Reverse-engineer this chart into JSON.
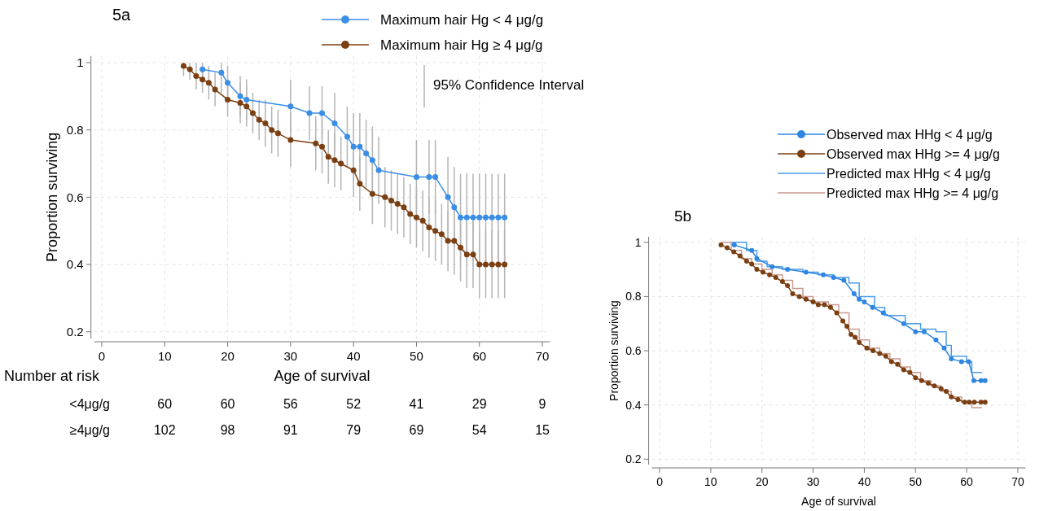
{
  "chart_data": [
    {
      "type": "line",
      "title": "5a",
      "xlabel": "Age of survival",
      "ylabel": "Proportion surviving",
      "xlim": [
        -1.2,
        71.2
      ],
      "xticks": [
        0,
        10,
        20,
        30,
        40,
        50,
        60,
        70
      ],
      "ylim": [
        0.18,
        1.02
      ],
      "yticks": [
        0.2,
        0.4,
        0.6,
        0.8,
        1
      ],
      "grid": true,
      "legend": "top",
      "marker": "circle",
      "series": [
        {
          "name": "Maximum hair Hg < 4 μg/g",
          "color": "#3a8ee6",
          "x": [
            16,
            19,
            20,
            22,
            23,
            30,
            33,
            35,
            37,
            39,
            40,
            41,
            42,
            43,
            44,
            50,
            52,
            53,
            55,
            56,
            57,
            58,
            59,
            60,
            61,
            62,
            63,
            64
          ],
          "values": [
            0.98,
            0.97,
            0.94,
            0.9,
            0.89,
            0.87,
            0.85,
            0.85,
            0.82,
            0.78,
            0.75,
            0.75,
            0.73,
            0.71,
            0.68,
            0.66,
            0.66,
            0.66,
            0.6,
            0.57,
            0.54,
            0.54,
            0.54,
            0.54,
            0.54,
            0.54,
            0.54,
            0.54
          ],
          "errors": [
            [
              0.93,
              1.0
            ],
            [
              0.91,
              1.0
            ],
            0.05,
            0.06,
            0.06,
            0.08,
            0.08,
            0.08,
            0.09,
            0.09,
            0.1,
            0.1,
            0.1,
            0.1,
            0.1,
            0.11,
            0.11,
            0.11,
            0.12,
            0.12,
            0.13,
            0.13,
            0.13,
            0.13,
            0.13,
            0.13,
            0.13,
            0.13
          ]
        },
        {
          "name": "Maximum hair Hg ≥ 4 μg/g",
          "color": "#7b3f12",
          "x": [
            13,
            14,
            15,
            16,
            17,
            18,
            20,
            22,
            23,
            24,
            25,
            26,
            27,
            28,
            30,
            34,
            35,
            36,
            37,
            38,
            40,
            41,
            43,
            45,
            46,
            47,
            48,
            49,
            50,
            51,
            52,
            53,
            54,
            55,
            56,
            57,
            58,
            59,
            60,
            61,
            62,
            63,
            64
          ],
          "values": [
            0.99,
            0.98,
            0.96,
            0.95,
            0.94,
            0.92,
            0.89,
            0.88,
            0.87,
            0.85,
            0.83,
            0.82,
            0.8,
            0.79,
            0.77,
            0.76,
            0.75,
            0.72,
            0.71,
            0.7,
            0.68,
            0.64,
            0.61,
            0.6,
            0.59,
            0.58,
            0.57,
            0.55,
            0.54,
            0.53,
            0.51,
            0.5,
            0.49,
            0.47,
            0.47,
            0.45,
            0.43,
            0.43,
            0.4,
            0.4,
            0.4,
            0.4,
            0.4
          ],
          "errors": [
            [
              0.96,
              1.0
            ],
            [
              0.95,
              1.0
            ],
            0.04,
            0.04,
            0.05,
            0.05,
            0.05,
            0.06,
            0.06,
            0.06,
            0.06,
            0.07,
            0.07,
            0.07,
            0.08,
            0.08,
            0.08,
            0.08,
            0.08,
            0.08,
            0.08,
            0.08,
            0.09,
            0.09,
            0.09,
            0.09,
            0.09,
            0.09,
            0.09,
            0.09,
            0.09,
            0.09,
            0.09,
            0.09,
            0.1,
            0.1,
            0.1,
            0.1,
            0.1,
            0.1,
            0.1,
            0.1,
            0.1
          ]
        }
      ],
      "annotations": [
        "95% Confidence Interval",
        "Number at risk",
        "<4μg/g",
        "60",
        "60",
        "56",
        "52",
        "41",
        "29",
        "9",
        "≥4μg/g",
        "102",
        "98",
        "91",
        "79",
        "69",
        "54",
        "15"
      ]
    },
    {
      "type": "line",
      "title": "5b",
      "xlabel": "Age of survival",
      "ylabel": "Proportion surviving",
      "xlim": [
        -1.5,
        71.5
      ],
      "xticks": [
        0,
        10,
        20,
        30,
        40,
        50,
        60,
        70
      ],
      "ylim": [
        0.18,
        1.02
      ],
      "yticks": [
        0.2,
        0.4,
        0.6,
        0.8,
        1
      ],
      "grid": true,
      "legend": "top right",
      "series": [
        {
          "name": "Observed max HHg < 4 μg/g",
          "marker": "circle",
          "color": "#2f86e0",
          "x": [
            14.6,
            18,
            19,
            22,
            25,
            28.6,
            32,
            34,
            36,
            38,
            39,
            40,
            41.6,
            43.7,
            47.7,
            50,
            51.7,
            54,
            55.6,
            57,
            59,
            60.4,
            61.4,
            62.8,
            63.6
          ],
          "values": [
            0.99,
            0.97,
            0.94,
            0.91,
            0.9,
            0.89,
            0.88,
            0.87,
            0.86,
            0.81,
            0.79,
            0.78,
            0.76,
            0.74,
            0.7,
            0.67,
            0.67,
            0.64,
            0.61,
            0.57,
            0.56,
            0.56,
            0.49,
            0.49,
            0.49
          ]
        },
        {
          "name": "Observed max HHg >= 4 μg/g",
          "marker": "circle",
          "color": "#7b3f12",
          "x": [
            12,
            13.2,
            14.5,
            15.7,
            17,
            18,
            19,
            20.2,
            21.5,
            22.7,
            24,
            25,
            26,
            27.3,
            28.6,
            30,
            31,
            32.2,
            33.4,
            34.6,
            35.8,
            36.6,
            37.4,
            38.2,
            39,
            40.5,
            41.7,
            43,
            44.2,
            45.3,
            46.5,
            47.7,
            48.9,
            50,
            51.2,
            52.5,
            53.7,
            55,
            56,
            57,
            58.3,
            59.6,
            60.5,
            61.5,
            62.8,
            63.6
          ],
          "values": [
            0.99,
            0.98,
            0.965,
            0.95,
            0.93,
            0.92,
            0.9,
            0.89,
            0.88,
            0.87,
            0.855,
            0.84,
            0.81,
            0.8,
            0.79,
            0.78,
            0.77,
            0.77,
            0.76,
            0.74,
            0.71,
            0.69,
            0.66,
            0.65,
            0.63,
            0.61,
            0.6,
            0.59,
            0.58,
            0.56,
            0.55,
            0.53,
            0.52,
            0.5,
            0.49,
            0.48,
            0.47,
            0.46,
            0.45,
            0.43,
            0.42,
            0.41,
            0.41,
            0.41,
            0.41,
            0.41
          ]
        },
        {
          "name": "Predicted max HHg < 4 μg/g",
          "type": "step",
          "marker": "none",
          "color": "#4d9ce8",
          "x": [
            14,
            17,
            19,
            21,
            24,
            28,
            31,
            34,
            37,
            39,
            42,
            44,
            48,
            51,
            54,
            56,
            57,
            60,
            61,
            63
          ],
          "values": [
            1,
            0.97,
            0.93,
            0.91,
            0.9,
            0.89,
            0.88,
            0.87,
            0.85,
            0.8,
            0.76,
            0.73,
            0.7,
            0.68,
            0.67,
            0.62,
            0.58,
            0.56,
            0.52,
            0.52
          ]
        },
        {
          "name": "Predicted max HHg >= 4 μg/g",
          "type": "step",
          "marker": "none",
          "color": "#c99a8e",
          "x": [
            12,
            14,
            16,
            18,
            20,
            22,
            24,
            26,
            28,
            30,
            33,
            35,
            37,
            39,
            41,
            43,
            45,
            47,
            49,
            51,
            53,
            55,
            57,
            59,
            61,
            63
          ],
          "values": [
            1,
            0.97,
            0.94,
            0.92,
            0.9,
            0.88,
            0.86,
            0.83,
            0.8,
            0.78,
            0.77,
            0.74,
            0.68,
            0.64,
            0.61,
            0.59,
            0.57,
            0.54,
            0.52,
            0.49,
            0.47,
            0.45,
            0.43,
            0.41,
            0.39,
            0.39
          ]
        }
      ]
    }
  ]
}
